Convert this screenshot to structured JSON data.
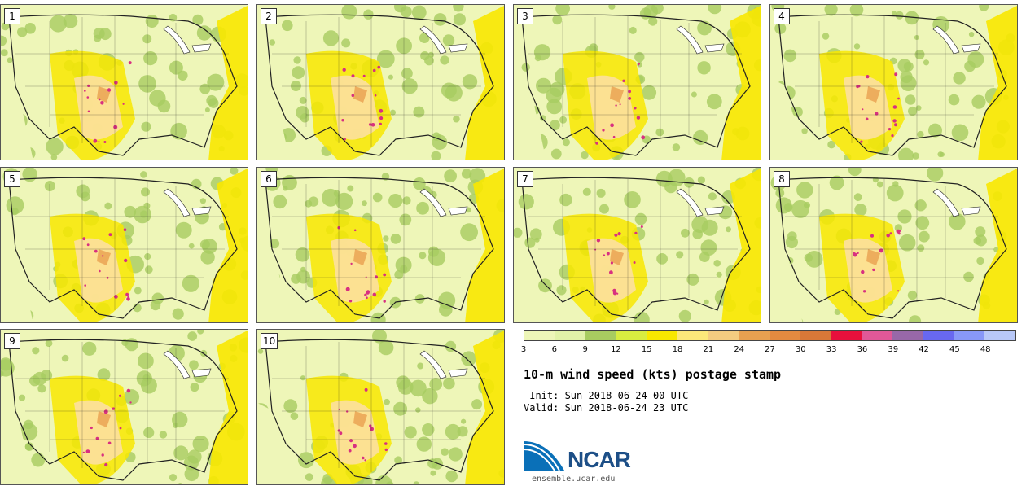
{
  "panels": [
    {
      "label": "1"
    },
    {
      "label": "2"
    },
    {
      "label": "3"
    },
    {
      "label": "4"
    },
    {
      "label": "5"
    },
    {
      "label": "6"
    },
    {
      "label": "7"
    },
    {
      "label": "8"
    },
    {
      "label": "9"
    },
    {
      "label": "10"
    }
  ],
  "colorbar": {
    "ticks": [
      "3",
      "6",
      "9",
      "12",
      "15",
      "18",
      "21",
      "24",
      "27",
      "30",
      "33",
      "36",
      "39",
      "42",
      "45",
      "48"
    ],
    "colors": [
      "#eef6b8",
      "#e2f2a8",
      "#a8cc60",
      "#d8ec40",
      "#f8e800",
      "#fce87a",
      "#f4cc80",
      "#e8a050",
      "#e48a40",
      "#d87838",
      "#e8103c",
      "#e05898",
      "#9868a8",
      "#6868f0",
      "#8898f8",
      "#b8c8f8"
    ]
  },
  "title": "10-m wind speed (kts) postage stamp",
  "init": " Init: Sun 2018-06-24 00 UTC",
  "valid": "Valid: Sun 2018-06-24 23 UTC",
  "logo": {
    "text": "NCAR",
    "site": "ensemble.ucar.edu"
  },
  "map_colors": {
    "base": "#eef6b8",
    "green": "#a8cc60",
    "yellow": "#f8e800",
    "tan": "#fce0a0",
    "orange": "#e8a050",
    "magenta": "#d83080",
    "line": "#222222"
  }
}
